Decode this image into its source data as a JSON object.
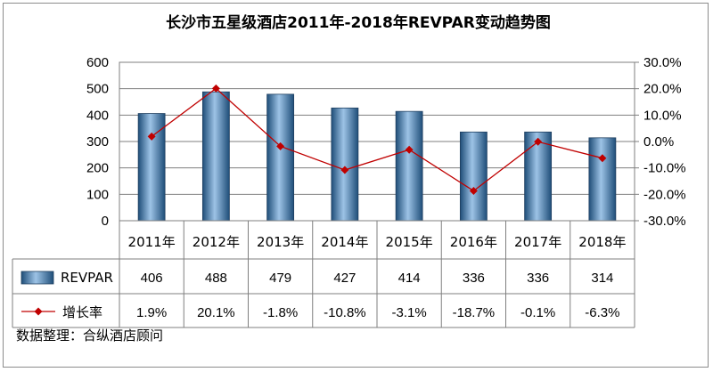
{
  "chart_data": {
    "type": "bar",
    "title": "长沙市五星级酒店2011年-2018年REVPAR变动趋势图",
    "categories": [
      "2011年",
      "2012年",
      "2013年",
      "2014年",
      "2015年",
      "2016年",
      "2017年",
      "2018年"
    ],
    "y_left": {
      "ylim": [
        0,
        600
      ],
      "ticks": [
        0,
        100,
        200,
        300,
        400,
        500,
        600
      ]
    },
    "y_right": {
      "ylim": [
        -30,
        30
      ],
      "ticks": [
        "-30.0%",
        "-20.0%",
        "-10.0%",
        "0.0%",
        "10.0%",
        "20.0%",
        "30.0%"
      ]
    },
    "series": [
      {
        "name": "REVPAR",
        "kind": "bar",
        "axis": "left",
        "values": [
          406,
          488,
          479,
          427,
          414,
          336,
          336,
          314
        ],
        "labels": [
          "406",
          "488",
          "479",
          "427",
          "414",
          "336",
          "336",
          "314"
        ],
        "color": "#5b9bd5"
      },
      {
        "name": "增长率",
        "kind": "line",
        "axis": "right",
        "values": [
          1.9,
          20.1,
          -1.8,
          -10.8,
          -3.1,
          -18.7,
          -0.1,
          -6.3
        ],
        "labels": [
          "1.9%",
          "20.1%",
          "-1.8%",
          "-10.8%",
          "-3.1%",
          "-18.7%",
          "-0.1%",
          "-6.3%"
        ],
        "color": "#c00000"
      }
    ],
    "grid": true,
    "data_table": true
  },
  "source_note": "数据整理：合纵酒店顾问"
}
